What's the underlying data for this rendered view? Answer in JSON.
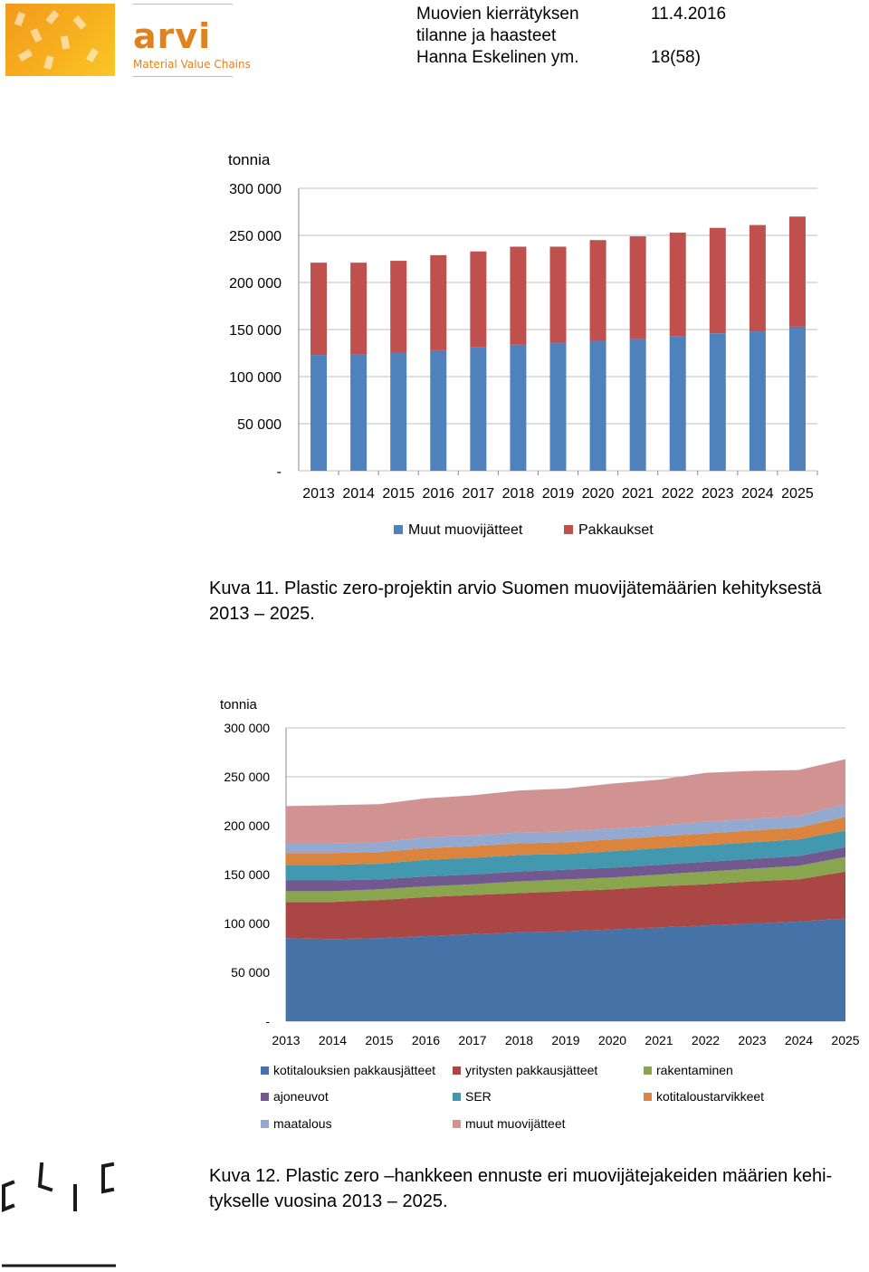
{
  "header": {
    "logo_text": "arvi",
    "logo_subtitle": "Material Value Chains",
    "title_line1": "Muovien kierrätyksen",
    "title_line2": "tilanne ja haasteet",
    "authors": "Hanna Eskelinen ym.",
    "date": "11.4.2016",
    "page": "18(58)"
  },
  "chart_data": [
    {
      "type": "bar",
      "stacked": true,
      "ylabel": "tonnia",
      "ylim": [
        0,
        300000
      ],
      "yticks": [
        "-",
        "50 000",
        "100 000",
        "150 000",
        "200 000",
        "250 000",
        "300 000"
      ],
      "categories": [
        "2013",
        "2014",
        "2015",
        "2016",
        "2017",
        "2018",
        "2019",
        "2020",
        "2021",
        "2022",
        "2023",
        "2024",
        "2025"
      ],
      "series": [
        {
          "name": "Muut muovijätteet",
          "color": "#4f81bd",
          "values": [
            123000,
            124000,
            126000,
            128000,
            131000,
            134000,
            136000,
            138000,
            140000,
            143000,
            146000,
            148000,
            153000
          ]
        },
        {
          "name": "Pakkaukset",
          "color": "#c0504d",
          "values": [
            98000,
            97000,
            97000,
            101000,
            102000,
            104000,
            102000,
            107000,
            109000,
            110000,
            112000,
            113000,
            117000
          ]
        }
      ],
      "legend": "bottom"
    },
    {
      "type": "area",
      "stacked": true,
      "ylabel": "tonnia",
      "ylim": [
        0,
        300000
      ],
      "yticks": [
        "-",
        "50 000",
        "100 000",
        "150 000",
        "200 000",
        "250 000",
        "300 000"
      ],
      "categories": [
        "2013",
        "2014",
        "2015",
        "2016",
        "2017",
        "2018",
        "2019",
        "2020",
        "2021",
        "2022",
        "2023",
        "2024",
        "2025"
      ],
      "series": [
        {
          "name": "kotitalouksien pakkausjätteet",
          "color": "#4572a7",
          "values": [
            85000,
            84000,
            85000,
            87000,
            89000,
            91000,
            92000,
            94000,
            96000,
            98000,
            100000,
            102000,
            105000
          ]
        },
        {
          "name": "yritysten pakkausjätteet",
          "color": "#aa4643",
          "values": [
            37000,
            38000,
            39000,
            40000,
            40000,
            40000,
            41000,
            41000,
            42000,
            42000,
            43000,
            43000,
            48000
          ]
        },
        {
          "name": "rakentaminen",
          "color": "#89a54e",
          "values": [
            11000,
            11000,
            11000,
            11000,
            11000,
            12000,
            12000,
            12000,
            12000,
            13000,
            13000,
            14000,
            15000
          ]
        },
        {
          "name": "ajoneuvot",
          "color": "#71588f",
          "values": [
            11000,
            11000,
            10000,
            10000,
            10000,
            10000,
            10000,
            10000,
            10000,
            10000,
            10000,
            10000,
            10000
          ]
        },
        {
          "name": "SER",
          "color": "#4198af",
          "values": [
            16000,
            16000,
            16000,
            17000,
            17000,
            17000,
            16000,
            17000,
            17000,
            17000,
            17000,
            17000,
            17000
          ]
        },
        {
          "name": "kotitaloustarvikkeet",
          "color": "#db843d",
          "values": [
            12000,
            12000,
            12000,
            12000,
            12000,
            12000,
            12000,
            12000,
            12000,
            12000,
            12000,
            12000,
            14000
          ]
        },
        {
          "name": "maatalous",
          "color": "#93a9cf",
          "values": [
            10000,
            10000,
            10000,
            11000,
            11000,
            11000,
            11000,
            11000,
            11000,
            12000,
            12000,
            12000,
            13000
          ]
        },
        {
          "name": "muut muovijätteet",
          "color": "#d19392",
          "values": [
            38000,
            39000,
            39000,
            40000,
            41000,
            43000,
            44000,
            46000,
            47000,
            50000,
            49000,
            47000,
            46000
          ]
        }
      ],
      "legend": "bottom"
    }
  ],
  "captions": {
    "fig11_line1": "Kuva 11. Plastic zero-projektin arvio Suomen muovijätemäärien kehityksestä",
    "fig11_line2": "2013 – 2025.",
    "fig12_line1": "Kuva 12. Plastic zero –hankkeen ennuste eri muovijätejakeiden määrien kehi-",
    "fig12_line2": "tykselle vuosina 2013 – 2025."
  },
  "colors": {
    "logo_orange": "#e0821e",
    "grid": "#bfbfbf"
  },
  "footer": {
    "logo_icon": "clic-logo-icon"
  }
}
